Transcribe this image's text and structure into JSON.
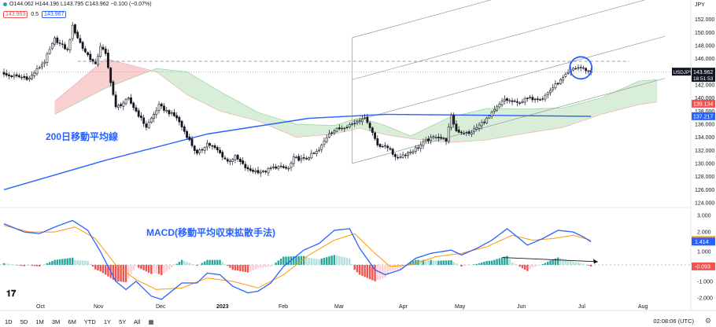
{
  "header": {
    "ohlc_text": "O144.062 H144.196 L143.795 C143.962 −0.100 (−0.07%)",
    "tag_red": "143.963",
    "spread": "0.5",
    "tag_blue": "143.967"
  },
  "annotations": {
    "ma_label": "200日移動平均線",
    "macd_label": "MACD(移動平均収束拡散手法)"
  },
  "toolbar": {
    "timeframes": [
      "1D",
      "5D",
      "1M",
      "3M",
      "6M",
      "YTD",
      "1Y",
      "5Y",
      "All"
    ],
    "time": "02:08:06 (UTC)"
  },
  "colors": {
    "up": "#26a69a",
    "down": "#ef5350",
    "candle": "#131722",
    "ma200": "#2962ff",
    "macd": "#2962ff",
    "signal": "#ff9800",
    "cloud_bull": "#d8eed8",
    "cloud_bear": "#f8d0d0"
  },
  "chart_data": [
    {
      "type": "candlestick",
      "title": "USDJPY",
      "currency": "JPY",
      "ylim": [
        124,
        154
      ],
      "y_ticks": [
        124,
        126,
        128,
        130,
        132,
        134,
        136,
        138,
        140,
        142,
        144,
        146,
        148,
        150,
        152
      ],
      "x_labels": [
        "Oct",
        "Nov",
        "Dec",
        "2023",
        "Feb",
        "Mar",
        "Apr",
        "May",
        "Jun",
        "Jul",
        "Aug"
      ],
      "last_price": 143.962,
      "last_price_label": "USDJPY",
      "countdown": "18:51:53",
      "price_labels": [
        {
          "value": 139.134,
          "text": "139.134",
          "color": "#ef5350"
        },
        {
          "value": 137.217,
          "text": "137.217",
          "color": "#2962ff"
        }
      ],
      "close_anchors": [
        [
          0,
          143.5
        ],
        [
          10,
          143.0
        ],
        [
          16,
          145.6
        ],
        [
          20,
          149.0
        ],
        [
          25,
          147.3
        ],
        [
          27,
          150.9
        ],
        [
          31,
          147.6
        ],
        [
          36,
          145.0
        ],
        [
          38,
          148.0
        ],
        [
          40,
          146.6
        ],
        [
          44,
          138.5
        ],
        [
          49,
          139.8
        ],
        [
          56,
          135.6
        ],
        [
          61,
          138.8
        ],
        [
          68,
          137.0
        ],
        [
          76,
          131.4
        ],
        [
          80,
          133.1
        ],
        [
          84,
          132.0
        ],
        [
          88,
          130.3
        ],
        [
          91,
          131.0
        ],
        [
          96,
          129.0
        ],
        [
          102,
          128.7
        ],
        [
          107,
          129.5
        ],
        [
          112,
          129.2
        ],
        [
          114,
          130.8
        ],
        [
          118,
          130.6
        ],
        [
          124,
          132.0
        ],
        [
          128,
          134.7
        ],
        [
          133,
          135.5
        ],
        [
          138,
          136.2
        ],
        [
          141,
          137.0
        ],
        [
          143,
          136.5
        ],
        [
          147,
          132.9
        ],
        [
          152,
          132.3
        ],
        [
          154,
          130.8
        ],
        [
          158,
          131.5
        ],
        [
          161,
          132.0
        ],
        [
          166,
          133.4
        ],
        [
          170,
          134.2
        ],
        [
          174,
          133.6
        ],
        [
          176,
          137.2
        ],
        [
          178,
          135.0
        ],
        [
          183,
          134.5
        ],
        [
          190,
          136.8
        ],
        [
          197,
          139.8
        ],
        [
          202,
          139.2
        ],
        [
          206,
          139.9
        ],
        [
          212,
          140.0
        ],
        [
          216,
          141.6
        ],
        [
          220,
          143.0
        ],
        [
          224,
          144.5
        ],
        [
          227,
          144.7
        ],
        [
          231,
          143.9
        ]
      ],
      "ma200_anchors": [
        [
          0,
          126.0
        ],
        [
          40,
          130.5
        ],
        [
          80,
          134.5
        ],
        [
          120,
          136.9
        ],
        [
          150,
          137.5
        ],
        [
          180,
          137.4
        ],
        [
          231,
          137.2
        ]
      ],
      "cloud_anchors": [
        [
          20,
          137.5,
          139.5
        ],
        [
          40,
          141.5,
          146.0
        ],
        [
          60,
          144.5,
          144.0
        ],
        [
          72,
          144.0,
          140.5
        ],
        [
          85,
          141.0,
          138.0
        ],
        [
          100,
          137.8,
          136.5
        ],
        [
          115,
          136.0,
          134.0
        ],
        [
          130,
          135.8,
          134.5
        ],
        [
          140,
          137.0,
          135.4
        ],
        [
          150,
          135.8,
          134.4
        ],
        [
          160,
          134.2,
          133.8
        ],
        [
          175,
          137.0,
          133.2
        ],
        [
          190,
          138.4,
          133.6
        ],
        [
          205,
          138.3,
          134.6
        ],
        [
          220,
          138.5,
          135.5
        ],
        [
          235,
          140.0,
          137.5
        ],
        [
          250,
          142.6,
          139.0
        ],
        [
          257,
          142.8,
          139.4
        ]
      ],
      "channel": {
        "from": [
          137,
          130.0
        ],
        "to": [
          260,
          143.0
        ],
        "offsets": [
          0,
          6.4,
          12.8,
          19.2
        ],
        "dashed_level": 145.6
      },
      "highlight": {
        "x": 227,
        "y": 144.6
      }
    },
    {
      "type": "macd",
      "title": "MACD",
      "ylim": [
        -2.2,
        3.2
      ],
      "y_ticks": [
        -2.0,
        -1.0,
        0.0,
        1.0,
        2.0,
        3.0
      ],
      "macd_value": 1.414,
      "signal_value": 1.507,
      "histogram_value": -0.093,
      "macd_anchors": [
        [
          0,
          2.5
        ],
        [
          8,
          2.0
        ],
        [
          14,
          1.9
        ],
        [
          20,
          2.3
        ],
        [
          27,
          2.7
        ],
        [
          33,
          2.1
        ],
        [
          38,
          0.8
        ],
        [
          44,
          -1.0
        ],
        [
          48,
          -1.5
        ],
        [
          52,
          -1.0
        ],
        [
          58,
          -1.9
        ],
        [
          62,
          -2.1
        ],
        [
          70,
          -1.1
        ],
        [
          76,
          -1.1
        ],
        [
          80,
          -0.5
        ],
        [
          85,
          -0.6
        ],
        [
          90,
          -1.3
        ],
        [
          96,
          -1.7
        ],
        [
          100,
          -1.6
        ],
        [
          105,
          -1.1
        ],
        [
          110,
          -0.1
        ],
        [
          118,
          0.9
        ],
        [
          124,
          1.3
        ],
        [
          130,
          2.1
        ],
        [
          136,
          2.2
        ],
        [
          140,
          1.0
        ],
        [
          146,
          -0.3
        ],
        [
          150,
          -0.6
        ],
        [
          156,
          -0.3
        ],
        [
          162,
          0.4
        ],
        [
          168,
          0.7
        ],
        [
          172,
          0.8
        ],
        [
          176,
          0.9
        ],
        [
          180,
          0.6
        ],
        [
          186,
          1.0
        ],
        [
          192,
          1.5
        ],
        [
          198,
          2.2
        ],
        [
          206,
          1.2
        ],
        [
          212,
          1.6
        ],
        [
          218,
          2.1
        ],
        [
          224,
          2.0
        ],
        [
          228,
          1.7
        ],
        [
          231,
          1.4
        ]
      ],
      "signal_anchors": [
        [
          0,
          2.4
        ],
        [
          10,
          2.0
        ],
        [
          20,
          2.0
        ],
        [
          28,
          2.3
        ],
        [
          36,
          1.6
        ],
        [
          44,
          0.0
        ],
        [
          52,
          -0.9
        ],
        [
          60,
          -1.5
        ],
        [
          70,
          -1.4
        ],
        [
          80,
          -0.8
        ],
        [
          90,
          -1.0
        ],
        [
          100,
          -1.4
        ],
        [
          110,
          -0.6
        ],
        [
          120,
          0.6
        ],
        [
          130,
          1.5
        ],
        [
          138,
          1.9
        ],
        [
          146,
          0.7
        ],
        [
          152,
          -0.1
        ],
        [
          160,
          0.0
        ],
        [
          170,
          0.5
        ],
        [
          180,
          0.7
        ],
        [
          190,
          1.1
        ],
        [
          200,
          1.8
        ],
        [
          208,
          1.5
        ],
        [
          216,
          1.6
        ],
        [
          224,
          1.8
        ],
        [
          231,
          1.5
        ]
      ],
      "trend_arrow": {
        "from": [
          196,
          0.45
        ],
        "to": [
          230,
          0.0
        ]
      }
    }
  ]
}
